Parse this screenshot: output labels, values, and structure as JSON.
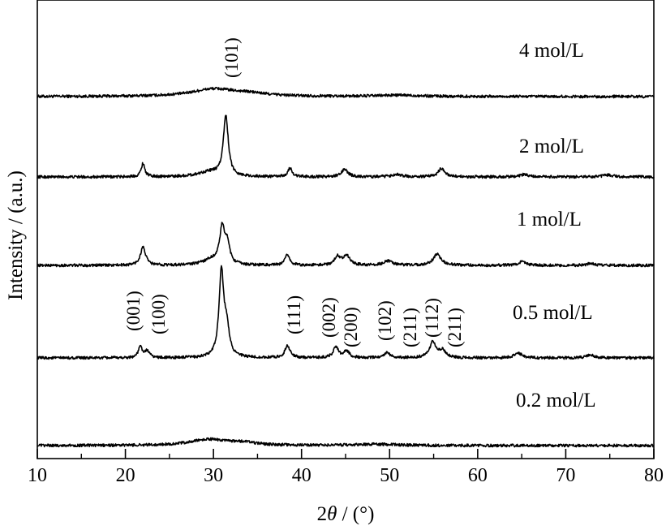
{
  "chart_data": {
    "type": "line",
    "xlabel_prefix": "2",
    "xlabel_theta": "θ",
    "xlabel_suffix": " / (°)",
    "ylabel": "Intensity / (a.u.)",
    "xlim": [
      10,
      80
    ],
    "x_ticks": [
      10,
      20,
      30,
      40,
      50,
      60,
      70,
      80
    ],
    "x_minor_ticks": [
      15,
      25,
      35,
      45,
      55,
      65,
      75
    ],
    "grid": false,
    "y_ticks_shown": false,
    "series": [
      {
        "name": "4 mol/L",
        "peaks": [
          [
            30,
            1.2,
            3.0
          ],
          [
            34,
            0.4,
            2.5
          ],
          [
            51,
            0.2,
            3
          ]
        ]
      },
      {
        "name": "2 mol/L",
        "peaks": [
          [
            22.0,
            2.2,
            0.25
          ],
          [
            29.5,
            0.8,
            1.5
          ],
          [
            31.4,
            10.0,
            0.33
          ],
          [
            38.7,
            1.4,
            0.3
          ],
          [
            44.9,
            1.2,
            0.45
          ],
          [
            50.8,
            0.45,
            0.6
          ],
          [
            55.9,
            1.4,
            0.45
          ],
          [
            65.3,
            0.4,
            0.5
          ],
          [
            74.8,
            0.3,
            0.6
          ]
        ]
      },
      {
        "name": "1 mol/L",
        "peaks": [
          [
            22.0,
            3.0,
            0.35
          ],
          [
            29.8,
            0.9,
            1.2
          ],
          [
            31.0,
            6.0,
            0.35
          ],
          [
            31.6,
            3.0,
            0.3
          ],
          [
            38.4,
            1.8,
            0.3
          ],
          [
            44.1,
            1.4,
            0.4
          ],
          [
            45.1,
            1.6,
            0.45
          ],
          [
            49.8,
            0.7,
            0.6
          ],
          [
            55.4,
            1.8,
            0.55
          ],
          [
            65.0,
            0.6,
            0.5
          ],
          [
            72.8,
            0.3,
            0.5
          ]
        ]
      },
      {
        "name": "0.5 mol/L",
        "peaks": [
          [
            21.7,
            1.8,
            0.28
          ],
          [
            22.5,
            1.1,
            0.3
          ],
          [
            30.9,
            14.0,
            0.32
          ],
          [
            31.5,
            4.5,
            0.35
          ],
          [
            38.4,
            2.0,
            0.35
          ],
          [
            43.9,
            1.8,
            0.35
          ],
          [
            45.1,
            1.1,
            0.4
          ],
          [
            49.7,
            0.9,
            0.4
          ],
          [
            54.9,
            2.5,
            0.45
          ],
          [
            56.0,
            1.2,
            0.45
          ],
          [
            64.6,
            0.8,
            0.5
          ],
          [
            72.8,
            0.5,
            0.5
          ]
        ]
      },
      {
        "name": "0.2 mol/L",
        "peaks": [
          [
            29.5,
            1.0,
            2.6
          ],
          [
            33.5,
            0.4,
            1.6
          ],
          [
            48.5,
            0.2,
            3
          ]
        ]
      }
    ],
    "peak_labels": [
      "(101)",
      "(001)",
      "(100)",
      "(111)",
      "(002)",
      "(200)",
      "(102)",
      "(211)",
      "(112)",
      "(211)"
    ]
  }
}
